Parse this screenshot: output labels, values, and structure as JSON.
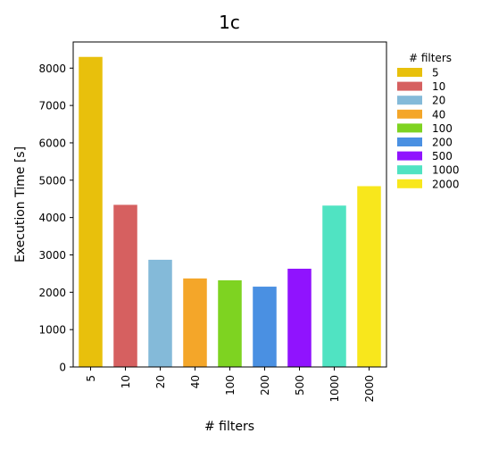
{
  "chart_data": {
    "type": "bar",
    "title": "1c",
    "xlabel": "# filters",
    "ylabel": "Execution Time [s]",
    "categories": [
      "5",
      "10",
      "20",
      "40",
      "100",
      "200",
      "500",
      "1000",
      "2000"
    ],
    "values": [
      8300,
      4340,
      2870,
      2370,
      2320,
      2150,
      2630,
      4320,
      4840
    ],
    "colors": [
      "#E8C00C",
      "#D66060",
      "#84BAD9",
      "#F4A629",
      "#7ED321",
      "#4A90E2",
      "#9013FE",
      "#50E3C2",
      "#F8E71C"
    ],
    "yticks": [
      0,
      1000,
      2000,
      3000,
      4000,
      5000,
      6000,
      7000,
      8000
    ],
    "ylim": [
      0,
      8700
    ],
    "grid": false,
    "legend": {
      "title": "# filters",
      "position": "right-outside-top",
      "entries": [
        "5",
        "10",
        "20",
        "40",
        "100",
        "200",
        "500",
        "1000",
        "2000"
      ]
    }
  }
}
